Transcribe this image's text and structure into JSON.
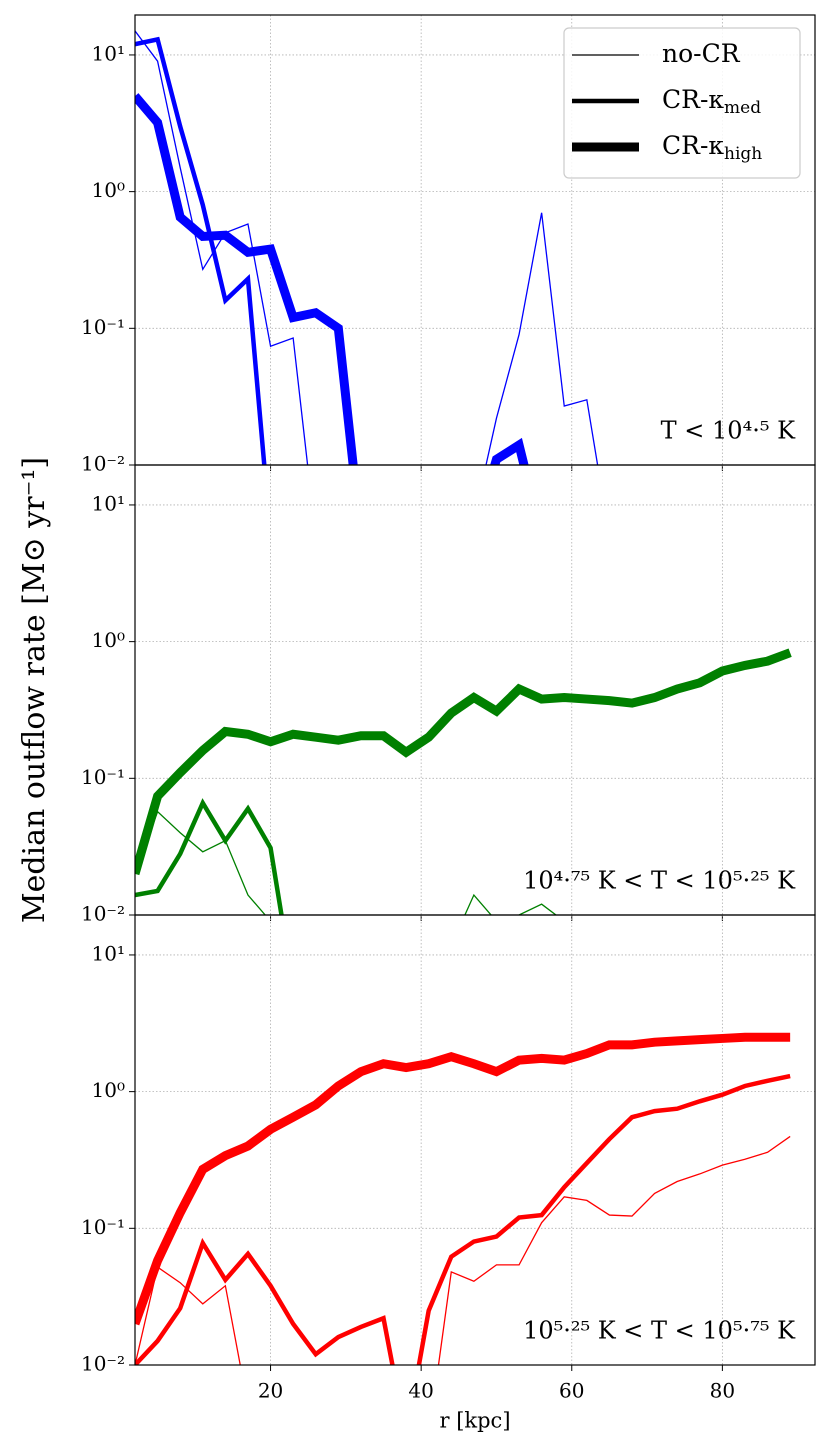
{
  "chart_data": [
    {
      "type": "line",
      "annotation": "T < 10⁴·⁵ K",
      "legend": "upper right",
      "legend_color": "#000000",
      "x": [
        2,
        5,
        8,
        11,
        14,
        17,
        20,
        23,
        26,
        29,
        32,
        35,
        38,
        41,
        44,
        47,
        50,
        53,
        56,
        59,
        62,
        65,
        68,
        71,
        74,
        77,
        80,
        83,
        86,
        89
      ],
      "xlim": [
        2,
        92.3
      ],
      "xticks": [
        20,
        40,
        60,
        80
      ],
      "ylim": [
        0.01,
        19.6
      ],
      "yscale": "log",
      "grid": true,
      "yticks": [
        {
          "value": 0.01,
          "label": "10⁻²"
        },
        {
          "value": 0.1,
          "label": "10⁻¹"
        },
        {
          "value": 1,
          "label": "10⁰"
        },
        {
          "value": 10,
          "label": "10¹"
        }
      ],
      "series": [
        {
          "name": "no-CR",
          "color": "#0000ff",
          "linewidth": 1.3,
          "values": [
            15,
            9,
            1.5,
            0.27,
            0.5,
            0.58,
            0.074,
            0.085,
            0.003,
            null,
            null,
            null,
            null,
            null,
            null,
            0.004,
            0.022,
            0.09,
            0.7,
            0.027,
            0.03,
            0.003,
            null,
            null,
            null,
            null,
            null,
            null,
            null,
            null
          ]
        },
        {
          "name": "CR-κmed",
          "color": "#0000ff",
          "linewidth": 4.5,
          "values": [
            12,
            13,
            3,
            0.8,
            0.16,
            0.23,
            0.003,
            null,
            null,
            null,
            null,
            null,
            null,
            null,
            null,
            null,
            null,
            null,
            null,
            null,
            null,
            null,
            null,
            null,
            null,
            null,
            null,
            null,
            null,
            null
          ]
        },
        {
          "name": "CR-κhigh",
          "color": "#0000ff",
          "linewidth": 9,
          "values": [
            5,
            3.2,
            0.65,
            0.47,
            0.48,
            0.36,
            0.38,
            0.12,
            0.13,
            0.1,
            0.003,
            null,
            null,
            null,
            null,
            0.003,
            0.011,
            0.014,
            0.003,
            null,
            null,
            null,
            null,
            null,
            null,
            null,
            null,
            null,
            null,
            null
          ]
        }
      ]
    },
    {
      "type": "line",
      "annotation": "10⁴·⁷⁵ K < T < 10⁵·²⁵ K",
      "ylabel": "Median outflow rate [M⊙ yr⁻¹]",
      "x": [
        2,
        5,
        8,
        11,
        14,
        17,
        20,
        23,
        26,
        29,
        32,
        35,
        38,
        41,
        44,
        47,
        50,
        53,
        56,
        59,
        62,
        65,
        68,
        71,
        74,
        77,
        80,
        83,
        86,
        89
      ],
      "xlim": [
        2,
        92.3
      ],
      "xticks": [
        20,
        40,
        60,
        80
      ],
      "ylim": [
        0.01,
        19.6
      ],
      "yscale": "log",
      "grid": true,
      "yticks": [
        {
          "value": 0.01,
          "label": "10⁻²"
        },
        {
          "value": 0.1,
          "label": "10⁻¹"
        },
        {
          "value": 1,
          "label": "10⁰"
        },
        {
          "value": 10,
          "label": "10¹"
        }
      ],
      "series": [
        {
          "color": "#008000",
          "linewidth": 1.3,
          "values": [
            0.02,
            0.057,
            0.04,
            0.029,
            0.035,
            0.014,
            0.009,
            0.005,
            null,
            null,
            null,
            null,
            null,
            null,
            0.006,
            0.014,
            0.009,
            0.01,
            0.012,
            0.009,
            0.005,
            null,
            null,
            null,
            null,
            null,
            null,
            null,
            null,
            null
          ]
        },
        {
          "color": "#008000",
          "linewidth": 4.5,
          "values": [
            0.014,
            0.015,
            0.028,
            0.066,
            0.035,
            0.06,
            0.031,
            0.003,
            null,
            null,
            null,
            null,
            null,
            null,
            null,
            null,
            null,
            null,
            null,
            null,
            null,
            null,
            null,
            null,
            null,
            null,
            null,
            null,
            null,
            null
          ]
        },
        {
          "color": "#008000",
          "linewidth": 9,
          "values": [
            0.02,
            0.074,
            0.11,
            0.16,
            0.22,
            0.21,
            0.185,
            0.21,
            0.2,
            0.19,
            0.205,
            0.205,
            0.155,
            0.2,
            0.3,
            0.39,
            0.31,
            0.45,
            0.38,
            0.39,
            0.38,
            0.37,
            0.355,
            0.39,
            0.45,
            0.5,
            0.61,
            0.67,
            0.72,
            0.83
          ]
        }
      ]
    },
    {
      "type": "line",
      "annotation": "10⁵·²⁵ K < T < 10⁵·⁷⁵ K",
      "xlabel": "r [kpc]",
      "x": [
        2,
        5,
        8,
        11,
        14,
        17,
        20,
        23,
        26,
        29,
        32,
        35,
        38,
        41,
        44,
        47,
        50,
        53,
        56,
        59,
        62,
        65,
        68,
        71,
        74,
        77,
        80,
        83,
        86,
        89
      ],
      "xlim": [
        2,
        92.3
      ],
      "xticks": [
        20,
        40,
        60,
        80
      ],
      "ylim": [
        0.01,
        19.6
      ],
      "yscale": "log",
      "grid": true,
      "yticks": [
        {
          "value": 0.01,
          "label": "10⁻²"
        },
        {
          "value": 0.1,
          "label": "10⁻¹"
        },
        {
          "value": 1,
          "label": "10⁰"
        },
        {
          "value": 10,
          "label": "10¹"
        }
      ],
      "series": [
        {
          "color": "#ff0000",
          "linewidth": 1.3,
          "values": [
            0.01,
            0.052,
            0.04,
            0.028,
            0.038,
            0.005,
            null,
            null,
            null,
            null,
            null,
            null,
            null,
            0.003,
            0.048,
            0.041,
            0.054,
            0.054,
            0.11,
            0.17,
            0.16,
            0.125,
            0.123,
            0.18,
            0.22,
            0.25,
            0.29,
            0.32,
            0.36,
            0.47
          ]
        },
        {
          "color": "#ff0000",
          "linewidth": 4.5,
          "values": [
            0.01,
            0.015,
            0.026,
            0.078,
            0.042,
            0.065,
            0.038,
            0.02,
            0.012,
            0.016,
            0.019,
            0.022,
            0.003,
            0.025,
            0.062,
            0.08,
            0.087,
            0.12,
            0.125,
            0.2,
            0.3,
            0.45,
            0.65,
            0.72,
            0.75,
            0.85,
            0.95,
            1.1,
            1.2,
            1.3
          ]
        },
        {
          "color": "#ff0000",
          "linewidth": 9,
          "values": [
            0.02,
            0.058,
            0.13,
            0.27,
            0.34,
            0.4,
            0.53,
            0.65,
            0.8,
            1.1,
            1.4,
            1.6,
            1.5,
            1.6,
            1.8,
            1.6,
            1.4,
            1.7,
            1.75,
            1.7,
            1.9,
            2.2,
            2.2,
            2.3,
            2.35,
            2.4,
            2.45,
            2.5,
            2.5,
            2.5
          ]
        }
      ]
    }
  ]
}
